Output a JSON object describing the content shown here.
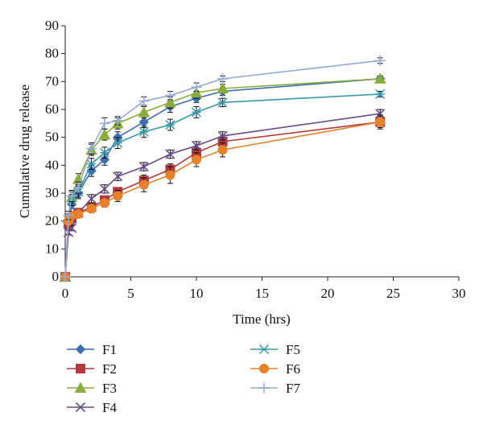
{
  "chart_data": {
    "type": "line",
    "title": "",
    "xlabel": "Time (hrs)",
    "ylabel": "Cumulative drug release",
    "xlim": [
      0,
      30
    ],
    "ylim": [
      0,
      90
    ],
    "xticks": [
      0,
      5,
      10,
      15,
      20,
      25,
      30
    ],
    "yticks": [
      0,
      10,
      20,
      30,
      40,
      50,
      60,
      70,
      80,
      90
    ],
    "grid": false,
    "legend_position": "bottom",
    "error_bars": true,
    "x": [
      0,
      0.25,
      0.5,
      1,
      2,
      3,
      4,
      6,
      8,
      10,
      12,
      24
    ],
    "series": [
      {
        "name": "F1",
        "color": "#3d6fb3",
        "marker": "diamond",
        "values": [
          0,
          18,
          26,
          30,
          38,
          42,
          50,
          55.5,
          61,
          64,
          66.5,
          71
        ],
        "errors": [
          0,
          1,
          1.5,
          2,
          2,
          2,
          2,
          2,
          2,
          1.5,
          1.5,
          1
        ]
      },
      {
        "name": "F2",
        "color": "#b33a3a",
        "marker": "square",
        "values": [
          0,
          19,
          21,
          23,
          25,
          27.5,
          30.5,
          34.5,
          38.5,
          44.5,
          48.5,
          55.5
        ],
        "errors": [
          0,
          1,
          1,
          1,
          1,
          1.5,
          1.5,
          2,
          2,
          2,
          2,
          2
        ]
      },
      {
        "name": "F3",
        "color": "#8aac3c",
        "marker": "triangle",
        "values": [
          0,
          21,
          28.5,
          35,
          45.5,
          51,
          55,
          59,
          62.5,
          66,
          67.5,
          71
        ],
        "errors": [
          0,
          1.5,
          2,
          2,
          2,
          2,
          2,
          2,
          2,
          2,
          1.5,
          1
        ]
      },
      {
        "name": "F4",
        "color": "#6a4a8c",
        "marker": "x",
        "values": [
          0,
          16,
          17.5,
          23,
          28,
          31.5,
          36,
          39.5,
          44,
          47,
          50.5,
          58.5
        ],
        "errors": [
          0,
          1,
          1,
          1,
          1.5,
          1.5,
          1.5,
          1.5,
          1.5,
          1.5,
          1.5,
          1.5
        ]
      },
      {
        "name": "F5",
        "color": "#3a9ab0",
        "marker": "star",
        "values": [
          0,
          20.5,
          27.5,
          30.5,
          40.5,
          44.5,
          48,
          52,
          54.5,
          59,
          62.5,
          65.5
        ],
        "errors": [
          0,
          1.5,
          2,
          2,
          2,
          2,
          2,
          2,
          2,
          2,
          1.5,
          1
        ]
      },
      {
        "name": "F6",
        "color": "#e8822a",
        "marker": "circle",
        "values": [
          0,
          20,
          22,
          22.5,
          24.5,
          26.5,
          29,
          33,
          36.5,
          42,
          45.5,
          55.5
        ],
        "errors": [
          0,
          1,
          1,
          1,
          1.5,
          1.5,
          2,
          2.5,
          3,
          2.5,
          2.5,
          2.5
        ]
      },
      {
        "name": "F7",
        "color": "#93abd6",
        "marker": "plus",
        "values": [
          0,
          22,
          29,
          32,
          46,
          55,
          56,
          63,
          65,
          68,
          71,
          77.5
        ],
        "errors": [
          0,
          1.5,
          2,
          2,
          2,
          2,
          1.5,
          1.5,
          1.5,
          1.5,
          1,
          1
        ]
      }
    ]
  }
}
